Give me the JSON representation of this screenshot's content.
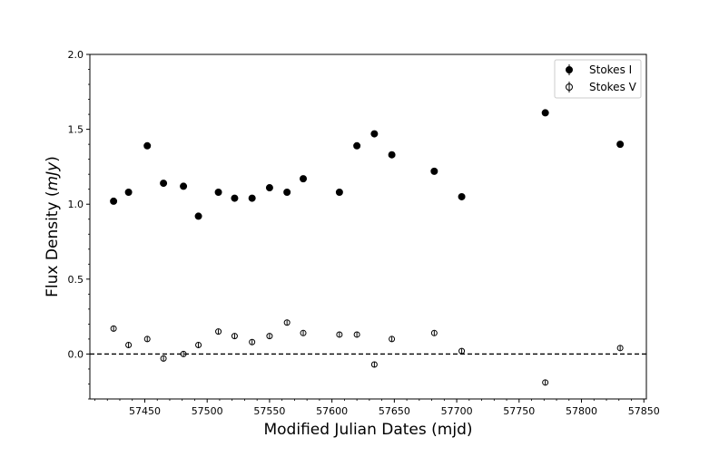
{
  "chart_data": {
    "type": "scatter",
    "xlabel": "Modified Julian Dates (mjd)",
    "ylabel_prefix": "Flux Density (",
    "ylabel_unit": "mJy",
    "ylabel_suffix": ")",
    "xlim": [
      57406,
      57852
    ],
    "ylim": [
      -0.3,
      2.0
    ],
    "xticks": [
      57450,
      57500,
      57550,
      57600,
      57650,
      57700,
      57750,
      57800,
      57850
    ],
    "yticks": [
      0.0,
      0.5,
      1.0,
      1.5,
      2.0
    ],
    "xtick_labels": [
      "57450",
      "57500",
      "57550",
      "57600",
      "57650",
      "57700",
      "57750",
      "57800",
      "57850"
    ],
    "ytick_labels": [
      "0.0",
      "0.5",
      "1.0",
      "1.5",
      "2.0"
    ],
    "grid": false,
    "legend_position": "top-right",
    "reference_line": {
      "y": 0.0,
      "style": "dashed"
    },
    "series": [
      {
        "name": "Stokes I",
        "marker": "filled-circle",
        "color": "#000000",
        "points": [
          {
            "x": 57425,
            "y": 1.02
          },
          {
            "x": 57437,
            "y": 1.08
          },
          {
            "x": 57452,
            "y": 1.39
          },
          {
            "x": 57465,
            "y": 1.14
          },
          {
            "x": 57481,
            "y": 1.12
          },
          {
            "x": 57493,
            "y": 0.92
          },
          {
            "x": 57509,
            "y": 1.08
          },
          {
            "x": 57522,
            "y": 1.04
          },
          {
            "x": 57536,
            "y": 1.04
          },
          {
            "x": 57550,
            "y": 1.11
          },
          {
            "x": 57564,
            "y": 1.08
          },
          {
            "x": 57577,
            "y": 1.17
          },
          {
            "x": 57606,
            "y": 1.08
          },
          {
            "x": 57620,
            "y": 1.39
          },
          {
            "x": 57634,
            "y": 1.47
          },
          {
            "x": 57648,
            "y": 1.33
          },
          {
            "x": 57682,
            "y": 1.22
          },
          {
            "x": 57704,
            "y": 1.05
          },
          {
            "x": 57771,
            "y": 1.61
          },
          {
            "x": 57831,
            "y": 1.4
          }
        ]
      },
      {
        "name": "Stokes V",
        "marker": "open-circle",
        "color": "#000000",
        "points": [
          {
            "x": 57425,
            "y": 0.17
          },
          {
            "x": 57437,
            "y": 0.06
          },
          {
            "x": 57452,
            "y": 0.1
          },
          {
            "x": 57465,
            "y": -0.03
          },
          {
            "x": 57481,
            "y": 0.0
          },
          {
            "x": 57493,
            "y": 0.06
          },
          {
            "x": 57509,
            "y": 0.15
          },
          {
            "x": 57522,
            "y": 0.12
          },
          {
            "x": 57536,
            "y": 0.08
          },
          {
            "x": 57550,
            "y": 0.12
          },
          {
            "x": 57564,
            "y": 0.21
          },
          {
            "x": 57577,
            "y": 0.14
          },
          {
            "x": 57606,
            "y": 0.13
          },
          {
            "x": 57620,
            "y": 0.13
          },
          {
            "x": 57634,
            "y": -0.07
          },
          {
            "x": 57648,
            "y": 0.1
          },
          {
            "x": 57682,
            "y": 0.14
          },
          {
            "x": 57704,
            "y": 0.02
          },
          {
            "x": 57771,
            "y": -0.19
          },
          {
            "x": 57831,
            "y": 0.04
          }
        ]
      }
    ]
  }
}
